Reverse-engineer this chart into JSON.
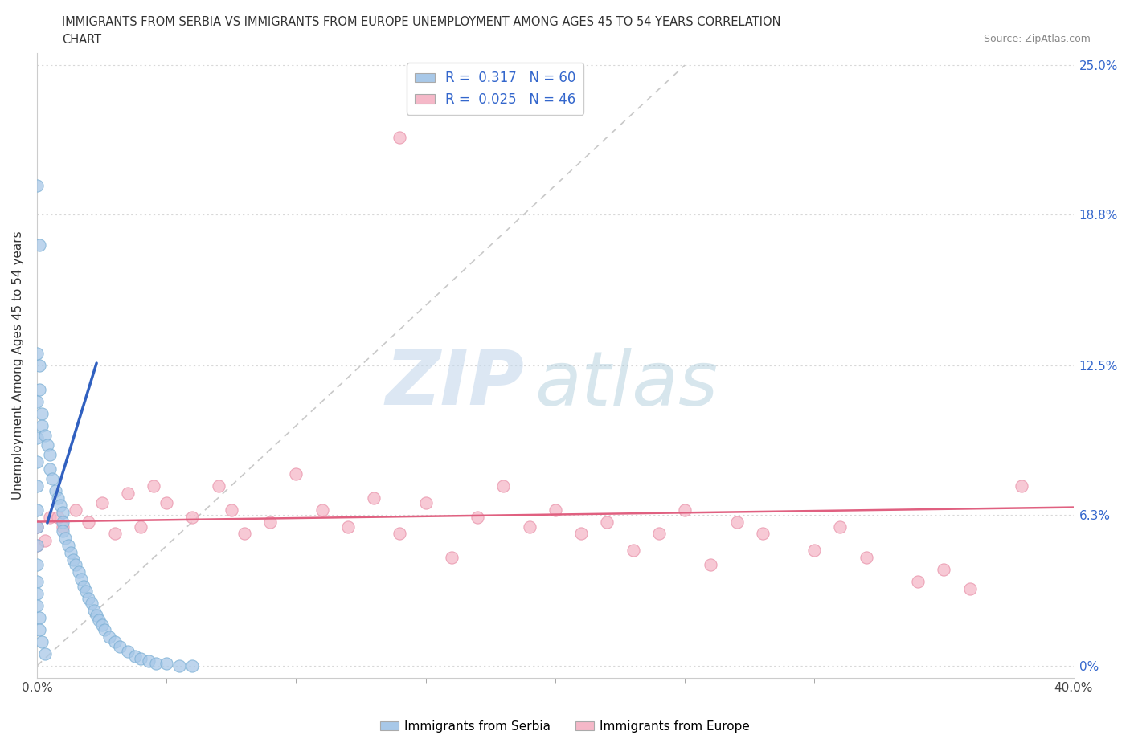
{
  "title_line1": "IMMIGRANTS FROM SERBIA VS IMMIGRANTS FROM EUROPE UNEMPLOYMENT AMONG AGES 45 TO 54 YEARS CORRELATION",
  "title_line2": "CHART",
  "source": "Source: ZipAtlas.com",
  "ylabel": "Unemployment Among Ages 45 to 54 years",
  "xlim": [
    0.0,
    0.4
  ],
  "ylim": [
    -0.005,
    0.255
  ],
  "yticks": [
    0.0,
    0.063,
    0.125,
    0.188,
    0.25
  ],
  "ytick_labels_right": [
    "0%",
    "6.3%",
    "12.5%",
    "18.8%",
    "25.0%"
  ],
  "serbia_color": "#a8c8e8",
  "serbia_edge_color": "#7aafd4",
  "europe_color": "#f5b8c8",
  "europe_edge_color": "#e890a8",
  "serbia_line_color": "#3060c0",
  "europe_line_color": "#e06080",
  "diag_color": "#bbbbbb",
  "serbia_R": 0.317,
  "serbia_N": 60,
  "europe_R": 0.025,
  "europe_N": 46,
  "serbia_x": [
    0.0,
    0.0,
    0.0,
    0.0,
    0.0,
    0.0,
    0.0,
    0.0,
    0.0,
    0.0,
    0.001,
    0.001,
    0.001,
    0.002,
    0.002,
    0.003,
    0.004,
    0.005,
    0.005,
    0.006,
    0.007,
    0.008,
    0.009,
    0.01,
    0.01,
    0.01,
    0.011,
    0.012,
    0.013,
    0.014,
    0.015,
    0.016,
    0.017,
    0.018,
    0.019,
    0.02,
    0.021,
    0.022,
    0.023,
    0.024,
    0.025,
    0.026,
    0.028,
    0.03,
    0.032,
    0.035,
    0.038,
    0.04,
    0.043,
    0.046,
    0.05,
    0.055,
    0.0,
    0.0,
    0.0,
    0.001,
    0.001,
    0.002,
    0.003,
    0.06
  ],
  "serbia_y": [
    0.2,
    0.13,
    0.11,
    0.095,
    0.085,
    0.075,
    0.065,
    0.058,
    0.05,
    0.042,
    0.175,
    0.125,
    0.115,
    0.105,
    0.1,
    0.096,
    0.092,
    0.088,
    0.082,
    0.078,
    0.073,
    0.07,
    0.067,
    0.064,
    0.06,
    0.056,
    0.053,
    0.05,
    0.047,
    0.044,
    0.042,
    0.039,
    0.036,
    0.033,
    0.031,
    0.028,
    0.026,
    0.023,
    0.021,
    0.019,
    0.017,
    0.015,
    0.012,
    0.01,
    0.008,
    0.006,
    0.004,
    0.003,
    0.002,
    0.001,
    0.001,
    0.0,
    0.035,
    0.03,
    0.025,
    0.02,
    0.015,
    0.01,
    0.005,
    0.0
  ],
  "europe_x": [
    0.005,
    0.01,
    0.015,
    0.02,
    0.025,
    0.03,
    0.035,
    0.04,
    0.05,
    0.06,
    0.07,
    0.08,
    0.09,
    0.1,
    0.11,
    0.12,
    0.13,
    0.14,
    0.15,
    0.16,
    0.17,
    0.18,
    0.19,
    0.2,
    0.21,
    0.22,
    0.23,
    0.24,
    0.25,
    0.26,
    0.27,
    0.28,
    0.3,
    0.31,
    0.32,
    0.34,
    0.35,
    0.36,
    0.0,
    0.0,
    0.003,
    0.008,
    0.045,
    0.075,
    0.38,
    0.14
  ],
  "europe_y": [
    0.062,
    0.058,
    0.065,
    0.06,
    0.068,
    0.055,
    0.072,
    0.058,
    0.068,
    0.062,
    0.075,
    0.055,
    0.06,
    0.08,
    0.065,
    0.058,
    0.07,
    0.055,
    0.068,
    0.045,
    0.062,
    0.075,
    0.058,
    0.065,
    0.055,
    0.06,
    0.048,
    0.055,
    0.065,
    0.042,
    0.06,
    0.055,
    0.048,
    0.058,
    0.045,
    0.035,
    0.04,
    0.032,
    0.058,
    0.05,
    0.052,
    0.062,
    0.075,
    0.065,
    0.075,
    0.22
  ],
  "watermark_zip": "ZIP",
  "watermark_atlas": "atlas",
  "background_color": "#ffffff",
  "grid_color": "#d8d8d8"
}
